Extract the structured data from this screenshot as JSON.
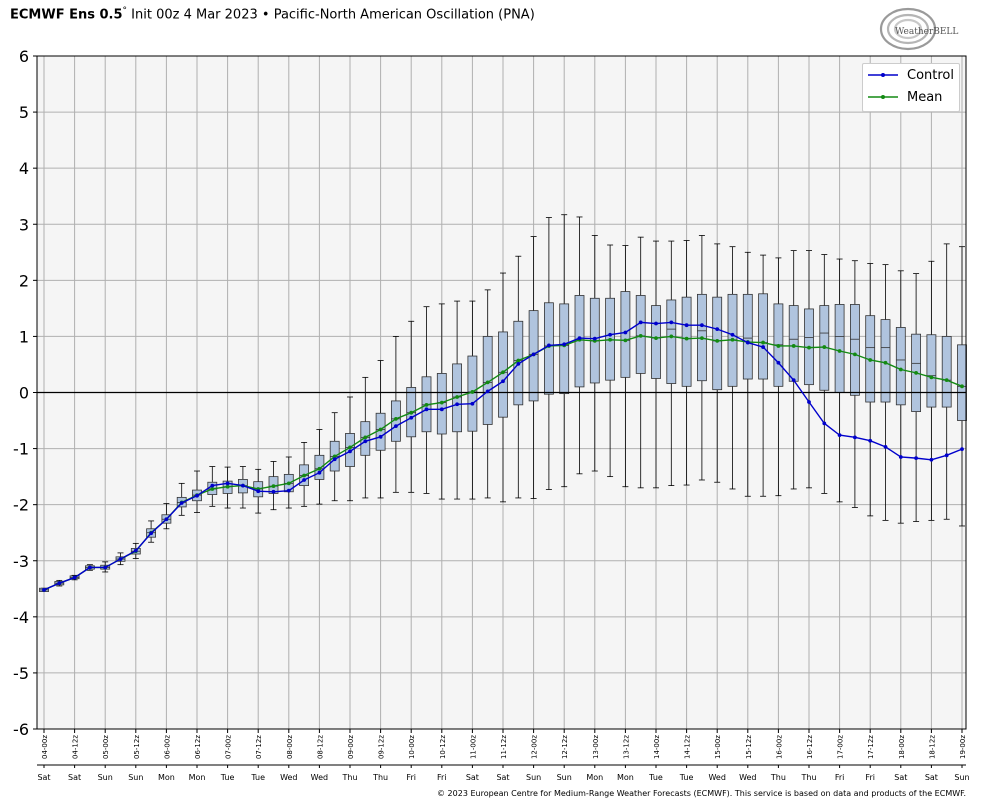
{
  "header": {
    "model": "ECMWF Ens 0.5",
    "degree": "°",
    "init": "Init 00z 4 Mar 2023",
    "bullet": "•",
    "index_name": "Pacific-North American Oscillation (PNA)"
  },
  "logo": {
    "text": "WeatherBELL"
  },
  "footer": {
    "credit": "© 2023 European Centre for Medium-Range Weather Forecasts (ECMWF). This service is based on data and products of the ECMWF."
  },
  "colors": {
    "control": "#0000cc",
    "mean": "#138a13",
    "box_fill": "#b0c4de",
    "plot_bg": "#f5f5f5",
    "grid": "#b0b0b0"
  },
  "chart_data": {
    "type": "box",
    "title": "",
    "xlabel": "",
    "ylabel": "",
    "ylim": [
      -6,
      6
    ],
    "yticks": [
      6,
      5,
      4,
      3,
      2,
      1,
      0,
      -1,
      -2,
      -3,
      -4,
      -5,
      -6
    ],
    "grid": true,
    "legend_position": "top-right",
    "x": [
      "04-00z",
      "04-06z",
      "04-12z",
      "04-18z",
      "05-00z",
      "05-06z",
      "05-12z",
      "05-18z",
      "06-00z",
      "06-06z",
      "06-12z",
      "06-18z",
      "07-00z",
      "07-06z",
      "07-12z",
      "07-18z",
      "08-00z",
      "08-06z",
      "08-12z",
      "08-18z",
      "09-00z",
      "09-06z",
      "09-12z",
      "09-18z",
      "10-00z",
      "10-06z",
      "10-12z",
      "10-18z",
      "11-00z",
      "11-06z",
      "11-12z",
      "11-18z",
      "12-00z",
      "12-06z",
      "12-12z",
      "12-18z",
      "13-00z",
      "13-06z",
      "13-12z",
      "13-18z",
      "14-00z",
      "14-06z",
      "14-12z",
      "14-18z",
      "15-00z",
      "15-06z",
      "15-12z",
      "15-18z",
      "16-00z",
      "16-06z",
      "16-12z",
      "16-18z",
      "17-00z",
      "17-06z",
      "17-12z",
      "17-18z",
      "18-00z",
      "18-06z",
      "18-12z",
      "18-18z",
      "19-00z"
    ],
    "tick_labels": [
      "04-00z",
      "04-12z",
      "05-00z",
      "05-12z",
      "06-00z",
      "06-12z",
      "07-00z",
      "07-12z",
      "08-00z",
      "08-12z",
      "09-00z",
      "09-12z",
      "10-00z",
      "10-12z",
      "11-00z",
      "11-12z",
      "12-00z",
      "12-12z",
      "13-00z",
      "13-12z",
      "14-00z",
      "14-12z",
      "15-00z",
      "15-12z",
      "16-00z",
      "16-12z",
      "17-00z",
      "17-12z",
      "18-00z",
      "18-12z",
      "19-00z"
    ],
    "day_labels": [
      "Sat",
      "Sat",
      "Sun",
      "Sun",
      "Mon",
      "Mon",
      "Tue",
      "Tue",
      "Wed",
      "Wed",
      "Thu",
      "Thu",
      "Fri",
      "Fri",
      "Sat",
      "Sat",
      "Sun",
      "Sun",
      "Mon",
      "Mon",
      "Tue",
      "Tue",
      "Wed",
      "Wed",
      "Thu",
      "Thu",
      "Fri",
      "Fri",
      "Sat",
      "Sat",
      "Sun"
    ],
    "series": [
      {
        "name": "Control",
        "values": [
          -3.52,
          -3.4,
          -3.3,
          -3.12,
          -3.12,
          -2.97,
          -2.82,
          -2.51,
          -2.26,
          -1.97,
          -1.84,
          -1.66,
          -1.62,
          -1.66,
          -1.76,
          -1.77,
          -1.75,
          -1.56,
          -1.43,
          -1.19,
          -1.05,
          -0.87,
          -0.79,
          -0.6,
          -0.45,
          -0.3,
          -0.3,
          -0.21,
          -0.2,
          0.02,
          0.2,
          0.51,
          0.68,
          0.84,
          0.86,
          0.97,
          0.96,
          1.03,
          1.07,
          1.25,
          1.23,
          1.25,
          1.2,
          1.2,
          1.13,
          1.03,
          0.89,
          0.81,
          0.53,
          0.22,
          -0.17,
          -0.55,
          -0.76,
          -0.8,
          -0.86,
          -0.97,
          -1.15,
          -1.17,
          -1.2,
          -1.12,
          -1.01
        ]
      },
      {
        "name": "Mean",
        "values": [
          -3.52,
          -3.4,
          -3.3,
          -3.12,
          -3.12,
          -2.97,
          -2.83,
          -2.5,
          -2.26,
          -1.96,
          -1.83,
          -1.72,
          -1.68,
          -1.66,
          -1.72,
          -1.67,
          -1.62,
          -1.48,
          -1.36,
          -1.14,
          -0.98,
          -0.8,
          -0.66,
          -0.47,
          -0.36,
          -0.22,
          -0.18,
          -0.08,
          0.01,
          0.18,
          0.36,
          0.57,
          0.68,
          0.83,
          0.84,
          0.94,
          0.92,
          0.94,
          0.93,
          1.01,
          0.97,
          1.0,
          0.96,
          0.97,
          0.92,
          0.94,
          0.9,
          0.89,
          0.83,
          0.83,
          0.8,
          0.81,
          0.74,
          0.68,
          0.58,
          0.53,
          0.41,
          0.35,
          0.27,
          0.22,
          0.11
        ]
      }
    ],
    "boxes": [
      {
        "x": "04-00z",
        "min": -3.55,
        "q1": -3.55,
        "median": -3.52,
        "q3": -3.49,
        "max": -3.49
      },
      {
        "x": "04-06z",
        "min": -3.45,
        "q1": -3.43,
        "median": -3.4,
        "q3": -3.37,
        "max": -3.35
      },
      {
        "x": "04-12z",
        "min": -3.34,
        "q1": -3.32,
        "median": -3.3,
        "q3": -3.27,
        "max": -3.26
      },
      {
        "x": "04-18z",
        "min": -3.17,
        "q1": -3.15,
        "median": -3.12,
        "q3": -3.09,
        "max": -3.07
      },
      {
        "x": "05-00z",
        "min": -3.2,
        "q1": -3.15,
        "median": -3.12,
        "q3": -3.08,
        "max": -3.02
      },
      {
        "x": "05-06z",
        "min": -3.07,
        "q1": -3.01,
        "median": -2.97,
        "q3": -2.93,
        "max": -2.86
      },
      {
        "x": "05-12z",
        "min": -2.96,
        "q1": -2.88,
        "median": -2.83,
        "q3": -2.78,
        "max": -2.69
      },
      {
        "x": "05-18z",
        "min": -2.67,
        "q1": -2.58,
        "median": -2.5,
        "q3": -2.43,
        "max": -2.29
      },
      {
        "x": "06-00z",
        "min": -2.43,
        "q1": -2.33,
        "median": -2.26,
        "q3": -2.18,
        "max": -1.98
      },
      {
        "x": "06-06z",
        "min": -2.19,
        "q1": -2.04,
        "median": -1.96,
        "q3": -1.87,
        "max": -1.62
      },
      {
        "x": "06-12z",
        "min": -2.14,
        "q1": -1.93,
        "median": -1.83,
        "q3": -1.74,
        "max": -1.4
      },
      {
        "x": "06-18z",
        "min": -2.03,
        "q1": -1.82,
        "median": -1.72,
        "q3": -1.6,
        "max": -1.32
      },
      {
        "x": "07-00z",
        "min": -2.06,
        "q1": -1.8,
        "median": -1.68,
        "q3": -1.58,
        "max": -1.33
      },
      {
        "x": "07-06z",
        "min": -2.06,
        "q1": -1.79,
        "median": -1.66,
        "q3": -1.55,
        "max": -1.32
      },
      {
        "x": "07-12z",
        "min": -2.15,
        "q1": -1.86,
        "median": -1.72,
        "q3": -1.59,
        "max": -1.37
      },
      {
        "x": "07-18z",
        "min": -2.09,
        "q1": -1.8,
        "median": -1.67,
        "q3": -1.5,
        "max": -1.23
      },
      {
        "x": "08-00z",
        "min": -2.06,
        "q1": -1.77,
        "median": -1.62,
        "q3": -1.46,
        "max": -1.15
      },
      {
        "x": "08-06z",
        "min": -2.03,
        "q1": -1.66,
        "median": -1.48,
        "q3": -1.29,
        "max": -0.89
      },
      {
        "x": "08-12z",
        "min": -1.99,
        "q1": -1.55,
        "median": -1.36,
        "q3": -1.12,
        "max": -0.66
      },
      {
        "x": "08-18z",
        "min": -1.93,
        "q1": -1.4,
        "median": -1.14,
        "q3": -0.87,
        "max": -0.36
      },
      {
        "x": "09-00z",
        "min": -1.93,
        "q1": -1.32,
        "median": -0.98,
        "q3": -0.73,
        "max": -0.08
      },
      {
        "x": "09-06z",
        "min": -1.88,
        "q1": -1.12,
        "median": -0.8,
        "q3": -0.52,
        "max": 0.27
      },
      {
        "x": "09-12z",
        "min": -1.88,
        "q1": -1.03,
        "median": -0.66,
        "q3": -0.37,
        "max": 0.57
      },
      {
        "x": "09-18z",
        "min": -1.78,
        "q1": -0.87,
        "median": -0.47,
        "q3": -0.15,
        "max": 1.0
      },
      {
        "x": "10-00z",
        "min": -1.78,
        "q1": -0.79,
        "median": -0.36,
        "q3": 0.09,
        "max": 1.27
      },
      {
        "x": "10-06z",
        "min": -1.8,
        "q1": -0.7,
        "median": -0.22,
        "q3": 0.28,
        "max": 1.53
      },
      {
        "x": "10-12z",
        "min": -1.9,
        "q1": -0.74,
        "median": -0.18,
        "q3": 0.34,
        "max": 1.58
      },
      {
        "x": "10-18z",
        "min": -1.9,
        "q1": -0.7,
        "median": -0.08,
        "q3": 0.51,
        "max": 1.63
      },
      {
        "x": "11-00z",
        "min": -1.9,
        "q1": -0.69,
        "median": 0.01,
        "q3": 0.65,
        "max": 1.63
      },
      {
        "x": "11-06z",
        "min": -1.88,
        "q1": -0.57,
        "median": 0.18,
        "q3": 1.0,
        "max": 1.83
      },
      {
        "x": "11-12z",
        "min": -1.95,
        "q1": -0.44,
        "median": 0.36,
        "q3": 1.08,
        "max": 2.13
      },
      {
        "x": "11-18z",
        "min": -1.88,
        "q1": -0.22,
        "median": 0.57,
        "q3": 1.27,
        "max": 2.43
      },
      {
        "x": "12-00z",
        "min": -1.89,
        "q1": -0.15,
        "median": 0.68,
        "q3": 1.46,
        "max": 2.78
      },
      {
        "x": "12-06z",
        "min": -1.73,
        "q1": -0.03,
        "median": 0.83,
        "q3": 1.6,
        "max": 3.12
      },
      {
        "x": "12-12z",
        "min": -1.68,
        "q1": -0.02,
        "median": 0.84,
        "q3": 1.58,
        "max": 3.17
      },
      {
        "x": "12-18z",
        "min": -1.45,
        "q1": 0.1,
        "median": 0.94,
        "q3": 1.73,
        "max": 3.13
      },
      {
        "x": "13-00z",
        "min": -1.4,
        "q1": 0.17,
        "median": 0.92,
        "q3": 1.68,
        "max": 2.8
      },
      {
        "x": "13-06z",
        "min": -1.5,
        "q1": 0.22,
        "median": 0.94,
        "q3": 1.68,
        "max": 2.63
      },
      {
        "x": "13-12z",
        "min": -1.68,
        "q1": 0.27,
        "median": 0.93,
        "q3": 1.8,
        "max": 2.62
      },
      {
        "x": "13-18z",
        "min": -1.7,
        "q1": 0.34,
        "median": 1.01,
        "q3": 1.73,
        "max": 2.77
      },
      {
        "x": "14-00z",
        "min": -1.7,
        "q1": 0.25,
        "median": 0.97,
        "q3": 1.55,
        "max": 2.7
      },
      {
        "x": "14-06z",
        "min": -1.66,
        "q1": 0.16,
        "median": 1.13,
        "q3": 1.65,
        "max": 2.7
      },
      {
        "x": "14-12z",
        "min": -1.65,
        "q1": 0.11,
        "median": 0.96,
        "q3": 1.7,
        "max": 2.71
      },
      {
        "x": "14-18z",
        "min": -1.56,
        "q1": 0.21,
        "median": 1.1,
        "q3": 1.75,
        "max": 2.8
      },
      {
        "x": "15-00z",
        "min": -1.6,
        "q1": 0.05,
        "median": 0.92,
        "q3": 1.7,
        "max": 2.65
      },
      {
        "x": "15-06z",
        "min": -1.72,
        "q1": 0.11,
        "median": 0.94,
        "q3": 1.75,
        "max": 2.6
      },
      {
        "x": "15-12z",
        "min": -1.85,
        "q1": 0.24,
        "median": 0.97,
        "q3": 1.75,
        "max": 2.5
      },
      {
        "x": "15-18z",
        "min": -1.85,
        "q1": 0.24,
        "median": 0.89,
        "q3": 1.76,
        "max": 2.45
      },
      {
        "x": "16-00z",
        "min": -1.84,
        "q1": 0.11,
        "median": 0.85,
        "q3": 1.58,
        "max": 2.4
      },
      {
        "x": "16-06z",
        "min": -1.72,
        "q1": 0.2,
        "median": 0.95,
        "q3": 1.55,
        "max": 2.53
      },
      {
        "x": "16-12z",
        "min": -1.7,
        "q1": 0.14,
        "median": 0.98,
        "q3": 1.49,
        "max": 2.53
      },
      {
        "x": "16-18z",
        "min": -1.8,
        "q1": 0.04,
        "median": 1.06,
        "q3": 1.55,
        "max": 2.46
      },
      {
        "x": "17-00z",
        "min": -1.95,
        "q1": 0.0,
        "median": 1.0,
        "q3": 1.57,
        "max": 2.38
      },
      {
        "x": "17-06z",
        "min": -2.05,
        "q1": -0.05,
        "median": 0.95,
        "q3": 1.57,
        "max": 2.35
      },
      {
        "x": "17-12z",
        "min": -2.2,
        "q1": -0.17,
        "median": 0.8,
        "q3": 1.37,
        "max": 2.3
      },
      {
        "x": "17-18z",
        "min": -2.28,
        "q1": -0.17,
        "median": 0.8,
        "q3": 1.3,
        "max": 2.28
      },
      {
        "x": "18-00z",
        "min": -2.33,
        "q1": -0.22,
        "median": 0.58,
        "q3": 1.16,
        "max": 2.17
      },
      {
        "x": "18-06z",
        "min": -2.3,
        "q1": -0.34,
        "median": 0.52,
        "q3": 1.04,
        "max": 2.12
      },
      {
        "x": "18-12z",
        "min": -2.28,
        "q1": -0.26,
        "median": 0.3,
        "q3": 1.03,
        "max": 2.34
      },
      {
        "x": "18-18z",
        "min": -2.26,
        "q1": -0.26,
        "median": 0.22,
        "q3": 1.0,
        "max": 2.65
      },
      {
        "x": "19-00z",
        "min": -2.38,
        "q1": -0.5,
        "median": 0.11,
        "q3": 0.85,
        "max": 2.6
      }
    ]
  }
}
